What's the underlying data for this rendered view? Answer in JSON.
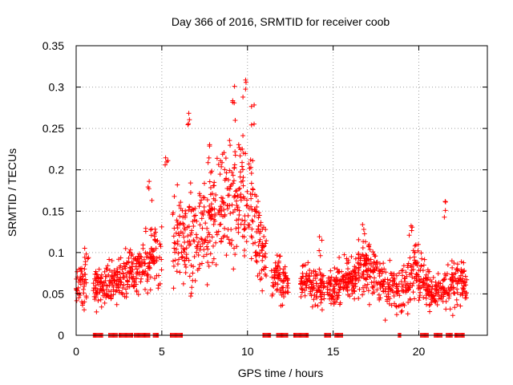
{
  "chart_data": {
    "type": "scatter",
    "title": "Day 366 of 2016, SRMTID for receiver coob",
    "xlabel": "GPS time / hours",
    "ylabel": "SRMTID / TECUs",
    "xlim": [
      0,
      24
    ],
    "ylim": [
      0,
      0.35
    ],
    "grid": true,
    "marker": "+",
    "color": "#ff0000",
    "x_ticks": [
      0,
      5,
      10,
      15,
      20
    ],
    "x_tick_labels": [
      "0",
      "5",
      "10",
      "15",
      "20"
    ],
    "y_ticks": [
      0,
      0.05,
      0.1,
      0.15,
      0.2,
      0.25,
      0.3,
      0.35
    ],
    "y_tick_labels": [
      "0",
      "0.05",
      "0.1",
      "0.15",
      "0.2",
      "0.25",
      "0.3",
      "0.35"
    ],
    "envelope": [
      {
        "x": 0.0,
        "y": 0.055,
        "spread": 0.02
      },
      {
        "x": 0.6,
        "y": 0.065,
        "spread": 0.025
      },
      {
        "x": 1.5,
        "y": 0.058,
        "spread": 0.02
      },
      {
        "x": 2.5,
        "y": 0.07,
        "spread": 0.025
      },
      {
        "x": 3.5,
        "y": 0.08,
        "spread": 0.025
      },
      {
        "x": 4.5,
        "y": 0.1,
        "spread": 0.035
      },
      {
        "x": 5.5,
        "y": 0.11,
        "spread": 0.045
      },
      {
        "x": 6.5,
        "y": 0.12,
        "spread": 0.05
      },
      {
        "x": 7.5,
        "y": 0.13,
        "spread": 0.05
      },
      {
        "x": 8.5,
        "y": 0.16,
        "spread": 0.055
      },
      {
        "x": 9.5,
        "y": 0.17,
        "spread": 0.06
      },
      {
        "x": 10.5,
        "y": 0.14,
        "spread": 0.05
      },
      {
        "x": 11.2,
        "y": 0.08,
        "spread": 0.025
      },
      {
        "x": 12.0,
        "y": 0.065,
        "spread": 0.02
      },
      {
        "x": 13.5,
        "y": 0.065,
        "spread": 0.02
      },
      {
        "x": 14.8,
        "y": 0.055,
        "spread": 0.02
      },
      {
        "x": 16.0,
        "y": 0.07,
        "spread": 0.025
      },
      {
        "x": 17.0,
        "y": 0.085,
        "spread": 0.03
      },
      {
        "x": 18.0,
        "y": 0.06,
        "spread": 0.025
      },
      {
        "x": 19.0,
        "y": 0.05,
        "spread": 0.025
      },
      {
        "x": 19.8,
        "y": 0.08,
        "spread": 0.03
      },
      {
        "x": 20.8,
        "y": 0.05,
        "spread": 0.015
      },
      {
        "x": 21.8,
        "y": 0.06,
        "spread": 0.025
      },
      {
        "x": 22.7,
        "y": 0.06,
        "spread": 0.025
      }
    ],
    "data_hours": [
      [
        0,
        0.6
      ],
      [
        1.0,
        5.0
      ],
      [
        5.6,
        11.1
      ],
      [
        11.4,
        12.4
      ],
      [
        13.1,
        14.5
      ],
      [
        14.6,
        22.8
      ]
    ],
    "zero_value_hours": [
      [
        1.0,
        1.6
      ],
      [
        1.9,
        2.4
      ],
      [
        2.5,
        3.3
      ],
      [
        3.4,
        4.3
      ],
      [
        4.5,
        4.8
      ],
      [
        5.5,
        6.2
      ],
      [
        10.9,
        11.4
      ],
      [
        11.7,
        12.4
      ],
      [
        12.7,
        13.6
      ],
      [
        14.5,
        14.9
      ],
      [
        15.1,
        15.6
      ],
      [
        18.8,
        19.0
      ],
      [
        20.1,
        20.6
      ],
      [
        20.9,
        21.4
      ],
      [
        21.6,
        22.0
      ],
      [
        22.1,
        22.7
      ]
    ],
    "peaks": [
      {
        "x": 9.2,
        "y": 0.305
      },
      {
        "x": 9.8,
        "y": 0.31
      },
      {
        "x": 6.6,
        "y": 0.27
      },
      {
        "x": 10.3,
        "y": 0.28
      },
      {
        "x": 5.3,
        "y": 0.225
      },
      {
        "x": 21.6,
        "y": 0.172
      },
      {
        "x": 19.5,
        "y": 0.15
      },
      {
        "x": 16.8,
        "y": 0.14
      },
      {
        "x": 0.6,
        "y": 0.118
      },
      {
        "x": 14.3,
        "y": 0.12
      },
      {
        "x": 4.3,
        "y": 0.19
      },
      {
        "x": 7.7,
        "y": 0.235
      }
    ]
  }
}
